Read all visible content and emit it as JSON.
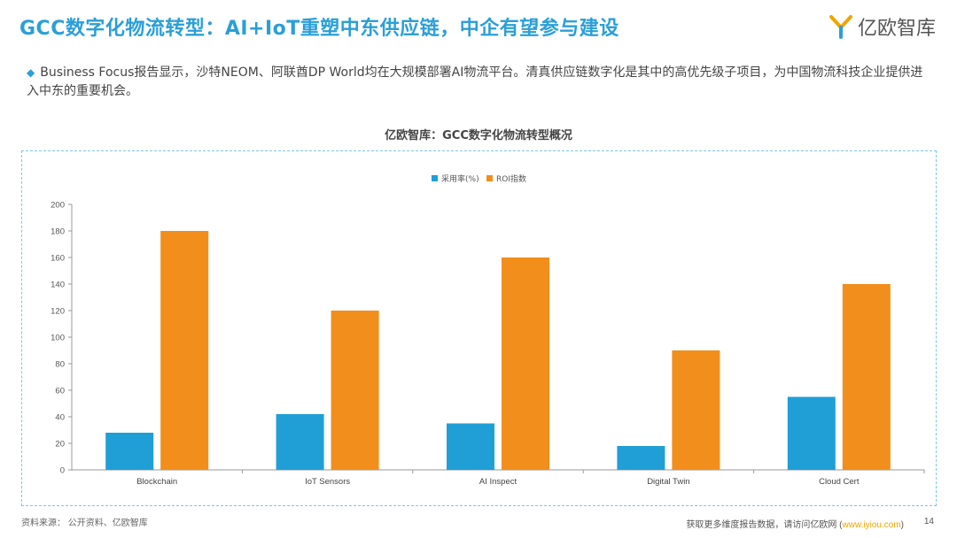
{
  "header": {
    "title": "GCC数字化物流转型：AI+IoT重塑中东供应链，中企有望参与建设",
    "logo_text": "亿欧智库"
  },
  "bullet": {
    "text": "Business Focus报告显示，沙特NEOM、阿联酋DP World均在大规模部署AI物流平台。清真供应链数字化是其中的高优先级子项目，为中国物流科技企业提供进入中东的重要机会。"
  },
  "colors": {
    "accent": "#2a9fd8",
    "series1": "#1f9fd6",
    "series2": "#f28e1c"
  },
  "chart_data": {
    "type": "bar",
    "title": "亿欧智库：GCC数字化物流转型概况",
    "categories": [
      "Blockchain",
      "IoT Sensors",
      "AI Inspect",
      "Digital Twin",
      "Cloud Cert"
    ],
    "series": [
      {
        "name": "采用率(%)",
        "values": [
          28,
          42,
          35,
          18,
          55
        ]
      },
      {
        "name": "ROI指数",
        "values": [
          180,
          120,
          160,
          90,
          140
        ]
      }
    ],
    "ylim": [
      0,
      200
    ],
    "yticks": [
      0,
      20,
      40,
      60,
      80,
      100,
      120,
      140,
      160,
      180,
      200
    ],
    "legend": "top-center",
    "grid": false
  },
  "footer": {
    "source": "资料来源：  公开资料、亿欧智库",
    "more_prefix": "获取更多维度报告数据，请访问亿欧网 (",
    "more_link": "www.iyiou.com",
    "more_suffix": ")",
    "page": "14"
  }
}
